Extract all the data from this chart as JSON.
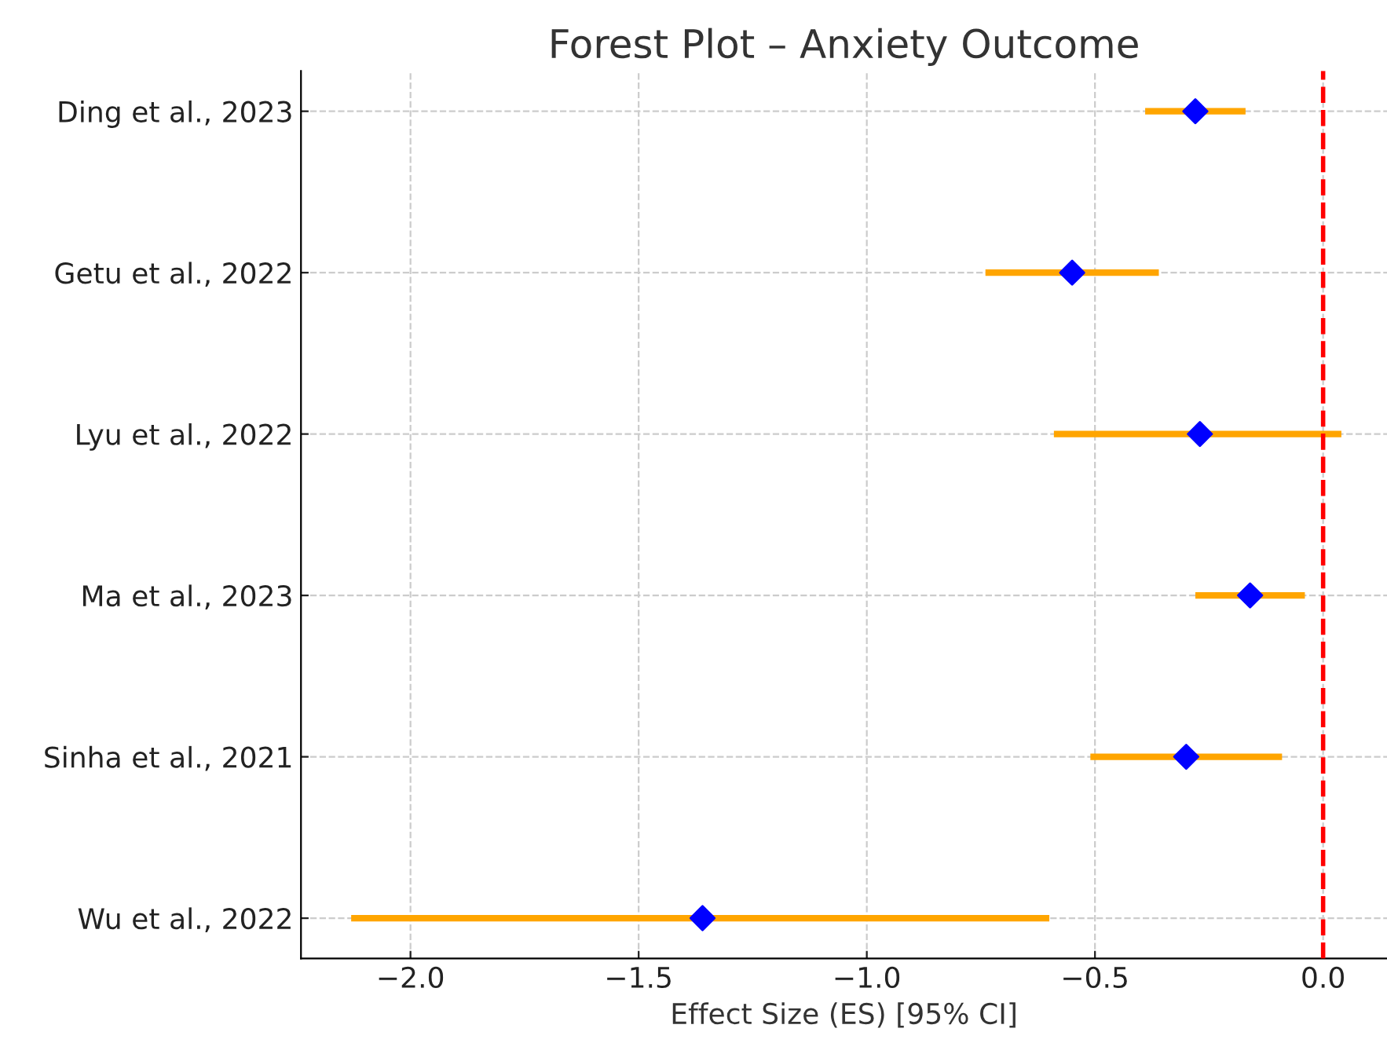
{
  "chart_data": {
    "type": "scatter",
    "orientation": "horizontal",
    "title": "Forest Plot – Anxiety Outcome",
    "xlabel": "Effect Size (ES) [95% CI]",
    "categories": [
      "Ding et al., 2023",
      "Getu et al., 2022",
      "Lyu et al., 2022",
      "Ma et al., 2023",
      "Sinha et al., 2021",
      "Wu et al., 2022"
    ],
    "series": [
      {
        "color": "#0000ff",
        "values": [
          -0.28,
          -0.55,
          -0.27,
          -0.16,
          -0.3,
          -1.36
        ],
        "errors": [
          [
            -0.39,
            -0.17
          ],
          [
            -0.74,
            -0.36
          ],
          [
            -0.59,
            0.04
          ],
          [
            -0.28,
            -0.04
          ],
          [
            -0.51,
            -0.09
          ],
          [
            -2.13,
            -0.6
          ]
        ]
      }
    ],
    "xlim": [
      -2.24,
      0.14
    ],
    "xticks": [
      {
        "value": -2.0,
        "label": "−2.0"
      },
      {
        "value": -1.5,
        "label": "−1.5"
      },
      {
        "value": -1.0,
        "label": "−1.0"
      },
      {
        "value": -0.5,
        "label": "−0.5"
      },
      {
        "value": 0.0,
        "label": "0.0"
      }
    ],
    "ref_lines": [
      {
        "axis": "x",
        "value": 0,
        "color": "#ff0000",
        "line_style": "dashed"
      }
    ],
    "grid": true,
    "marker": "diamond",
    "legend": false
  }
}
